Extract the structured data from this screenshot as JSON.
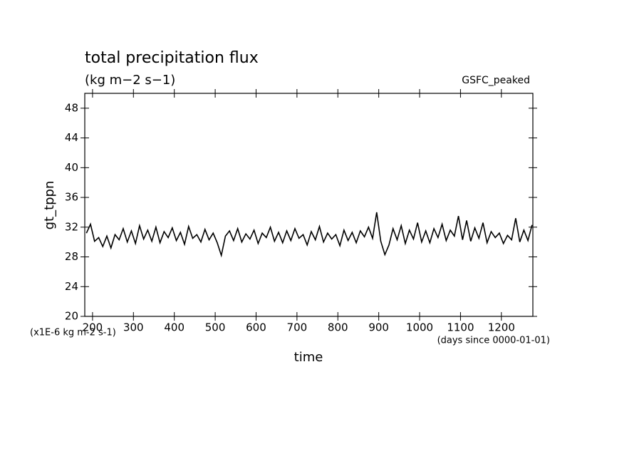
{
  "chart_data": {
    "type": "line",
    "title": "total precipitation flux",
    "subtitle": "(kg m−2 s−1)",
    "annotation": "GSFC_peaked",
    "y_label": "gt_tppn",
    "y_units": "(x1E-6 kg m-2 s-1)",
    "x_label": "time",
    "x_units": "(days since 0000-01-01)",
    "xlim": [
      181,
      1277
    ],
    "ylim": [
      20,
      50
    ],
    "xticks": [
      200,
      300,
      400,
      500,
      600,
      700,
      800,
      900,
      1000,
      1100,
      1200
    ],
    "yticks": [
      20,
      24,
      28,
      32,
      36,
      40,
      44,
      48
    ],
    "color": "#000000",
    "x": [
      185,
      195,
      205,
      215,
      225,
      235,
      245,
      255,
      265,
      275,
      285,
      295,
      305,
      315,
      325,
      335,
      345,
      355,
      365,
      375,
      385,
      395,
      405,
      415,
      425,
      435,
      445,
      455,
      465,
      475,
      485,
      495,
      505,
      515,
      525,
      535,
      545,
      555,
      565,
      575,
      585,
      595,
      605,
      615,
      625,
      635,
      645,
      655,
      665,
      675,
      685,
      695,
      705,
      715,
      725,
      735,
      745,
      755,
      765,
      775,
      785,
      795,
      805,
      815,
      825,
      835,
      845,
      855,
      865,
      875,
      885,
      895,
      905,
      915,
      925,
      935,
      945,
      955,
      965,
      975,
      985,
      995,
      1005,
      1015,
      1025,
      1035,
      1045,
      1055,
      1065,
      1075,
      1085,
      1095,
      1105,
      1115,
      1125,
      1135,
      1145,
      1155,
      1165,
      1175,
      1185,
      1195,
      1205,
      1215,
      1225,
      1235,
      1245,
      1255,
      1265,
      1275
    ],
    "values": [
      31.2,
      32.4,
      30.1,
      30.6,
      29.4,
      30.8,
      29.2,
      31.0,
      30.3,
      31.8,
      30.0,
      31.5,
      29.8,
      32.2,
      30.4,
      31.6,
      30.1,
      32.0,
      29.9,
      31.4,
      30.6,
      31.9,
      30.2,
      31.3,
      29.7,
      32.1,
      30.5,
      31.0,
      30.0,
      31.7,
      30.3,
      31.2,
      29.9,
      28.2,
      30.8,
      31.5,
      30.2,
      31.8,
      30.0,
      31.1,
      30.4,
      31.6,
      29.8,
      31.2,
      30.6,
      32.0,
      30.1,
      31.3,
      29.9,
      31.5,
      30.2,
      31.8,
      30.5,
      31.0,
      29.6,
      31.4,
      30.3,
      32.1,
      30.0,
      31.2,
      30.4,
      31.0,
      29.5,
      31.6,
      30.2,
      31.3,
      29.9,
      31.5,
      30.7,
      32.0,
      30.5,
      34.0,
      30.1,
      28.3,
      29.6,
      31.8,
      30.3,
      32.2,
      29.8,
      31.6,
      30.4,
      32.6,
      30.0,
      31.5,
      29.9,
      31.8,
      30.6,
      32.4,
      30.2,
      31.6,
      30.8,
      33.5,
      30.3,
      32.9,
      30.1,
      31.9,
      30.5,
      32.6,
      29.9,
      31.4,
      30.6,
      31.2,
      29.8,
      30.9,
      30.3,
      33.2,
      30.0,
      31.6,
      30.2,
      32.3
    ]
  }
}
